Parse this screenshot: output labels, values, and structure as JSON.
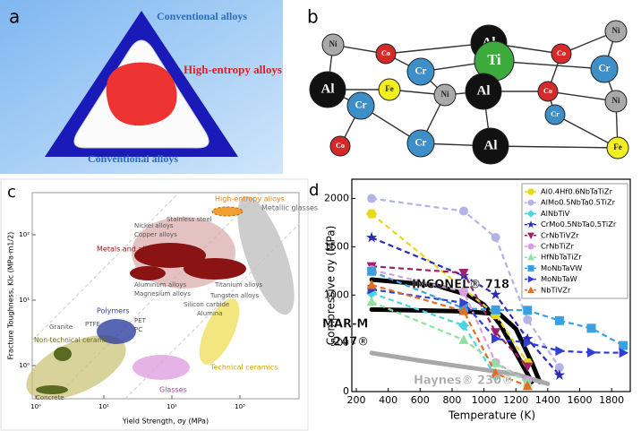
{
  "panels": {
    "a": {
      "letter": "a",
      "top_label": "Conventional alloys",
      "center_label": "High-entropy alloys",
      "bottom_label": "Conventional alloys"
    },
    "b": {
      "letter": "b",
      "atoms": [
        {
          "label": "Ni",
          "color": "#a9a9a9"
        },
        {
          "label": "Co",
          "color": "#d42a2a"
        },
        {
          "label": "Al",
          "color": "#111111"
        },
        {
          "label": "Co",
          "color": "#d42a2a"
        },
        {
          "label": "Ni",
          "color": "#a9a9a9"
        },
        {
          "label": "Cr",
          "color": "#3d8fc8"
        },
        {
          "label": "Ti",
          "color": "#3daa3d"
        },
        {
          "label": "Cr",
          "color": "#3d8fc8"
        },
        {
          "label": "Al",
          "color": "#111111"
        },
        {
          "label": "Fe",
          "color": "#f2ef1e"
        },
        {
          "label": "Ni",
          "color": "#a9a9a9"
        },
        {
          "label": "Al",
          "color": "#111111"
        },
        {
          "label": "Co",
          "color": "#d42a2a"
        },
        {
          "label": "Ni",
          "color": "#a9a9a9"
        },
        {
          "label": "Cr",
          "color": "#3d8fc8"
        },
        {
          "label": "Cr",
          "color": "#3d8fc8"
        },
        {
          "label": "Co",
          "color": "#d42a2a"
        },
        {
          "label": "Cr",
          "color": "#3d8fc8"
        },
        {
          "label": "Al",
          "color": "#111111"
        },
        {
          "label": "Fe",
          "color": "#f2ef1e"
        }
      ]
    },
    "c": {
      "letter": "c",
      "x_label": "Yield Strength, σy (MPa)",
      "y_label": "Fracture Toughness, KIc (MPa·m1/2)",
      "xticks": [
        {
          "value": 1,
          "label": "10⁰"
        },
        {
          "value": 10,
          "label": "10¹"
        },
        {
          "value": 100,
          "label": "10²"
        },
        {
          "value": 1000,
          "label": "10³"
        }
      ],
      "yticks": [
        {
          "value": 1,
          "label": "10⁰"
        },
        {
          "value": 10,
          "label": "10¹"
        },
        {
          "value": 100,
          "label": "10²"
        }
      ],
      "regions": {
        "hea": "High-entropy alloys",
        "mg": "Metallic glasses",
        "metals": "Metals and alloys",
        "polymers": "Polymers",
        "ntc": "Non-technical ceramics",
        "tc": "Technical ceramics",
        "glasses": "Glasses"
      },
      "small_labels": {
        "nickel": "Nickel alloys",
        "steel": "Stainless steel",
        "copper": "Copper alloys",
        "aluminum": "Aluminum alloys",
        "magnesium": "Magnesium alloys",
        "titanium": "Titanium alloys",
        "tungsten": "Tungsten alloys",
        "sic": "Silicon carbide",
        "alumina": "Alumina",
        "concrete": "Concrete",
        "granite": "Granite",
        "ptfe": "PTFE",
        "pet": "PET",
        "pc": "PC"
      }
    }
  },
  "chart_data": {
    "type": "line",
    "letter": "d",
    "x_label": "Temperature (K)",
    "y_label": "Compressive σy (MPa)",
    "xlim": [
      200,
      1900
    ],
    "xticks": [
      200,
      400,
      600,
      800,
      1000,
      1200,
      1400,
      1600,
      1800
    ],
    "ylim": [
      0,
      2200
    ],
    "yticks": [
      0,
      500,
      1000,
      1500,
      2000
    ],
    "legend": "upper right",
    "series": [
      {
        "name": "Al0.4Hf0.6NbTaTiZr",
        "color": "#e8d81a",
        "marker": "hexagon",
        "x": [
          296,
          1073,
          1273
        ],
        "values": [
          1841,
          796,
          298
        ]
      },
      {
        "name": "AlMo0.5NbTa0.5TiZr",
        "color": "#b3b3e6",
        "marker": "circle",
        "x": [
          296,
          873,
          1073,
          1273,
          1473
        ],
        "values": [
          2000,
          1870,
          1597,
          745,
          250
        ]
      },
      {
        "name": "AlNbTiV",
        "color": "#4fd3e0",
        "marker": "diamond",
        "x": [
          296,
          873,
          1073
        ],
        "values": [
          1020,
          685,
          158
        ]
      },
      {
        "name": "CrMo0.5NbTa0.5TiZr",
        "color": "#2a2ab8",
        "marker": "star",
        "x": [
          296,
          873,
          1073,
          1273,
          1473
        ],
        "values": [
          1595,
          1200,
          1005,
          546,
          170
        ]
      },
      {
        "name": "CrNbTiVZr",
        "color": "#a0206e",
        "marker": "triangle-down",
        "x": [
          296,
          873,
          1073,
          1273
        ],
        "values": [
          1298,
          1230,
          615,
          259
        ]
      },
      {
        "name": "CrNbTiZr",
        "color": "#d8a0e0",
        "marker": "circle",
        "x": [
          296,
          873,
          1073,
          1273
        ],
        "values": [
          1260,
          1035,
          300,
          115
        ]
      },
      {
        "name": "HfNbTaTiZr",
        "color": "#90e0a0",
        "marker": "triangle",
        "x": [
          296,
          873,
          1073,
          1273
        ],
        "values": [
          929,
          535,
          295,
          92
        ]
      },
      {
        "name": "MoNbTaVW",
        "color": "#3aa0e0",
        "marker": "square",
        "x": [
          296,
          873,
          1073,
          1273,
          1473,
          1673,
          1873
        ],
        "values": [
          1246,
          862,
          846,
          842,
          735,
          656,
          477
        ]
      },
      {
        "name": "MoNbTaW",
        "color": "#3040d0",
        "marker": "triangle-right",
        "x": [
          296,
          873,
          1073,
          1273,
          1473,
          1673,
          1873
        ],
        "values": [
          1058,
          920,
          548,
          506,
          421,
          405,
          402
        ]
      },
      {
        "name": "NbTiVZr",
        "color": "#e07020",
        "marker": "triangle",
        "x": [
          296,
          873,
          1073,
          1273
        ],
        "values": [
          1105,
          834,
          187,
          58
        ]
      }
    ],
    "annotated_series": [
      {
        "label": [
          "INCONEL® 718"
        ],
        "color": "#000000",
        "x": [
          296,
          700,
          900,
          1000,
          1100,
          1200,
          1300
        ],
        "values": [
          1160,
          1100,
          1000,
          900,
          700,
          400,
          100
        ]
      },
      {
        "label": [
          "MAR-M",
          "247®"
        ],
        "color": "#000000",
        "x": [
          296,
          900,
          1100,
          1200,
          1300,
          1350
        ],
        "values": [
          850,
          830,
          800,
          650,
          300,
          100
        ]
      },
      {
        "label": [
          "Haynes® 230®"
        ],
        "color": "#a8a8a8",
        "x": [
          296,
          600,
          900,
          1200,
          1400
        ],
        "values": [
          400,
          320,
          250,
          180,
          80
        ]
      }
    ]
  }
}
